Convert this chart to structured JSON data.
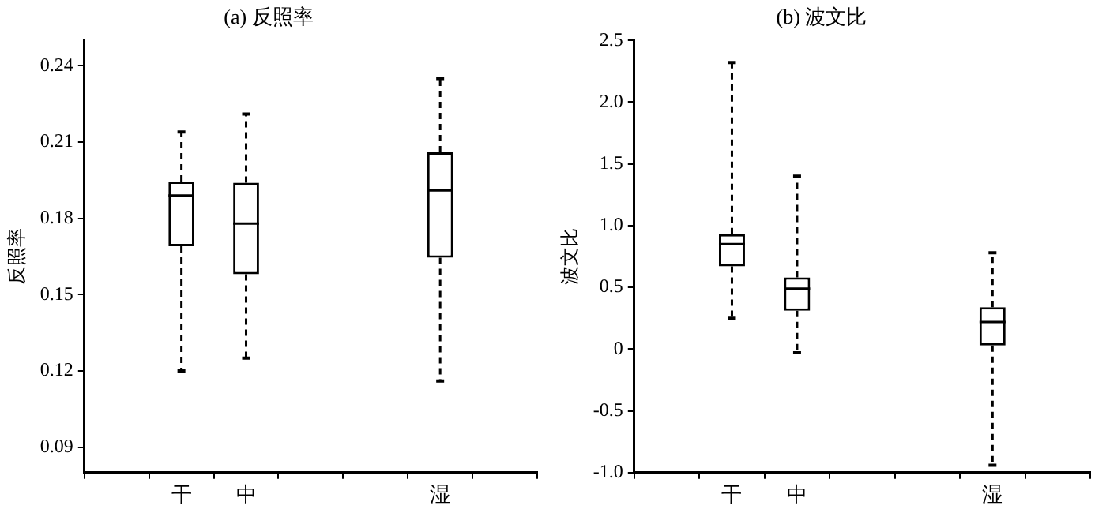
{
  "chart_data": [
    {
      "type": "box",
      "title": "(a) 反照率",
      "ylabel": "反照率",
      "categories": [
        null,
        "干",
        "中",
        null,
        null,
        "湿",
        null
      ],
      "boxes": [
        null,
        {
          "low": 0.12,
          "q1": 0.169,
          "median": 0.189,
          "q3": 0.1945,
          "high": 0.214
        },
        {
          "low": 0.125,
          "q1": 0.158,
          "median": 0.178,
          "q3": 0.194,
          "high": 0.221
        },
        null,
        null,
        {
          "low": 0.116,
          "q1": 0.1645,
          "median": 0.191,
          "q3": 0.206,
          "high": 0.235
        },
        null
      ],
      "ylim": [
        0.08,
        0.25
      ],
      "yticks": [
        0.09,
        0.12,
        0.15,
        0.18,
        0.21,
        0.24
      ]
    },
    {
      "type": "box",
      "title": "(b) 波文比",
      "ylabel": "波文比",
      "categories": [
        null,
        "干",
        "中",
        null,
        null,
        "湿",
        null
      ],
      "boxes": [
        null,
        {
          "low": 0.25,
          "q1": 0.67,
          "median": 0.85,
          "q3": 0.93,
          "high": 2.32
        },
        {
          "low": -0.03,
          "q1": 0.31,
          "median": 0.49,
          "q3": 0.58,
          "high": 1.4
        },
        null,
        null,
        {
          "low": -0.94,
          "q1": 0.03,
          "median": 0.22,
          "q3": 0.34,
          "high": 0.78
        },
        null
      ],
      "ylim": [
        -1.0,
        2.5
      ],
      "yticks": [
        {
          "value": -1,
          "label": "-1.0"
        },
        {
          "value": -0.5,
          "label": "-0.5"
        },
        0,
        {
          "value": 0.5,
          "label": "0.5"
        },
        {
          "value": 1,
          "label": "1.0"
        },
        {
          "value": 1.5,
          "label": "1.5"
        },
        {
          "value": 2,
          "label": "2.0"
        },
        {
          "value": 2.5,
          "label": "2.5"
        }
      ]
    }
  ]
}
